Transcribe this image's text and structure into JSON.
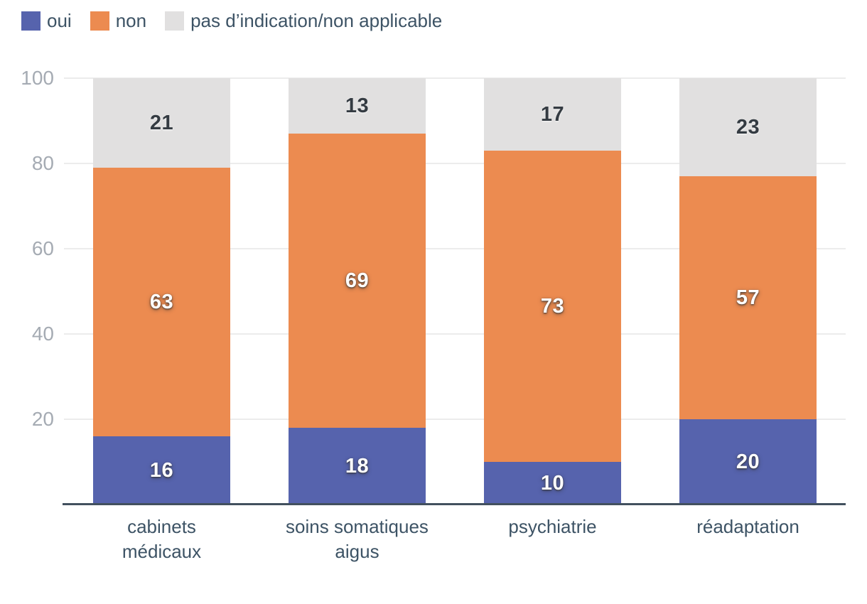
{
  "legend": {
    "items": [
      {
        "label": "oui",
        "color": "#5663ad"
      },
      {
        "label": "non",
        "color": "#ec8b50"
      },
      {
        "label": "pas d’indication/non applicable",
        "color": "#e1e0e0"
      }
    ]
  },
  "chart_data": {
    "type": "bar",
    "stacked": true,
    "title": "",
    "xlabel": "",
    "ylabel": "",
    "categories": [
      "cabinets médicaux",
      "soins somatiques aigus",
      "psychiatrie",
      "réadaptation"
    ],
    "series": [
      {
        "name": "oui",
        "color": "#5663ad",
        "label_style": "light",
        "values": [
          16,
          18,
          10,
          20
        ]
      },
      {
        "name": "non",
        "color": "#ec8b50",
        "label_style": "light",
        "values": [
          63,
          69,
          73,
          57
        ]
      },
      {
        "name": "pas d’indication/non applicable",
        "color": "#e1e0e0",
        "label_style": "dark",
        "values": [
          21,
          13,
          17,
          23
        ]
      }
    ],
    "ylim": [
      0,
      100
    ],
    "yticks": [
      20,
      40,
      60,
      80,
      100
    ],
    "grid": true,
    "legend_position": "top-left"
  },
  "style": {
    "grid_color": "#ececec",
    "axis_line_color": "#42505e",
    "ytick_color": "#a5abb3",
    "text_color": "#3d5365"
  }
}
